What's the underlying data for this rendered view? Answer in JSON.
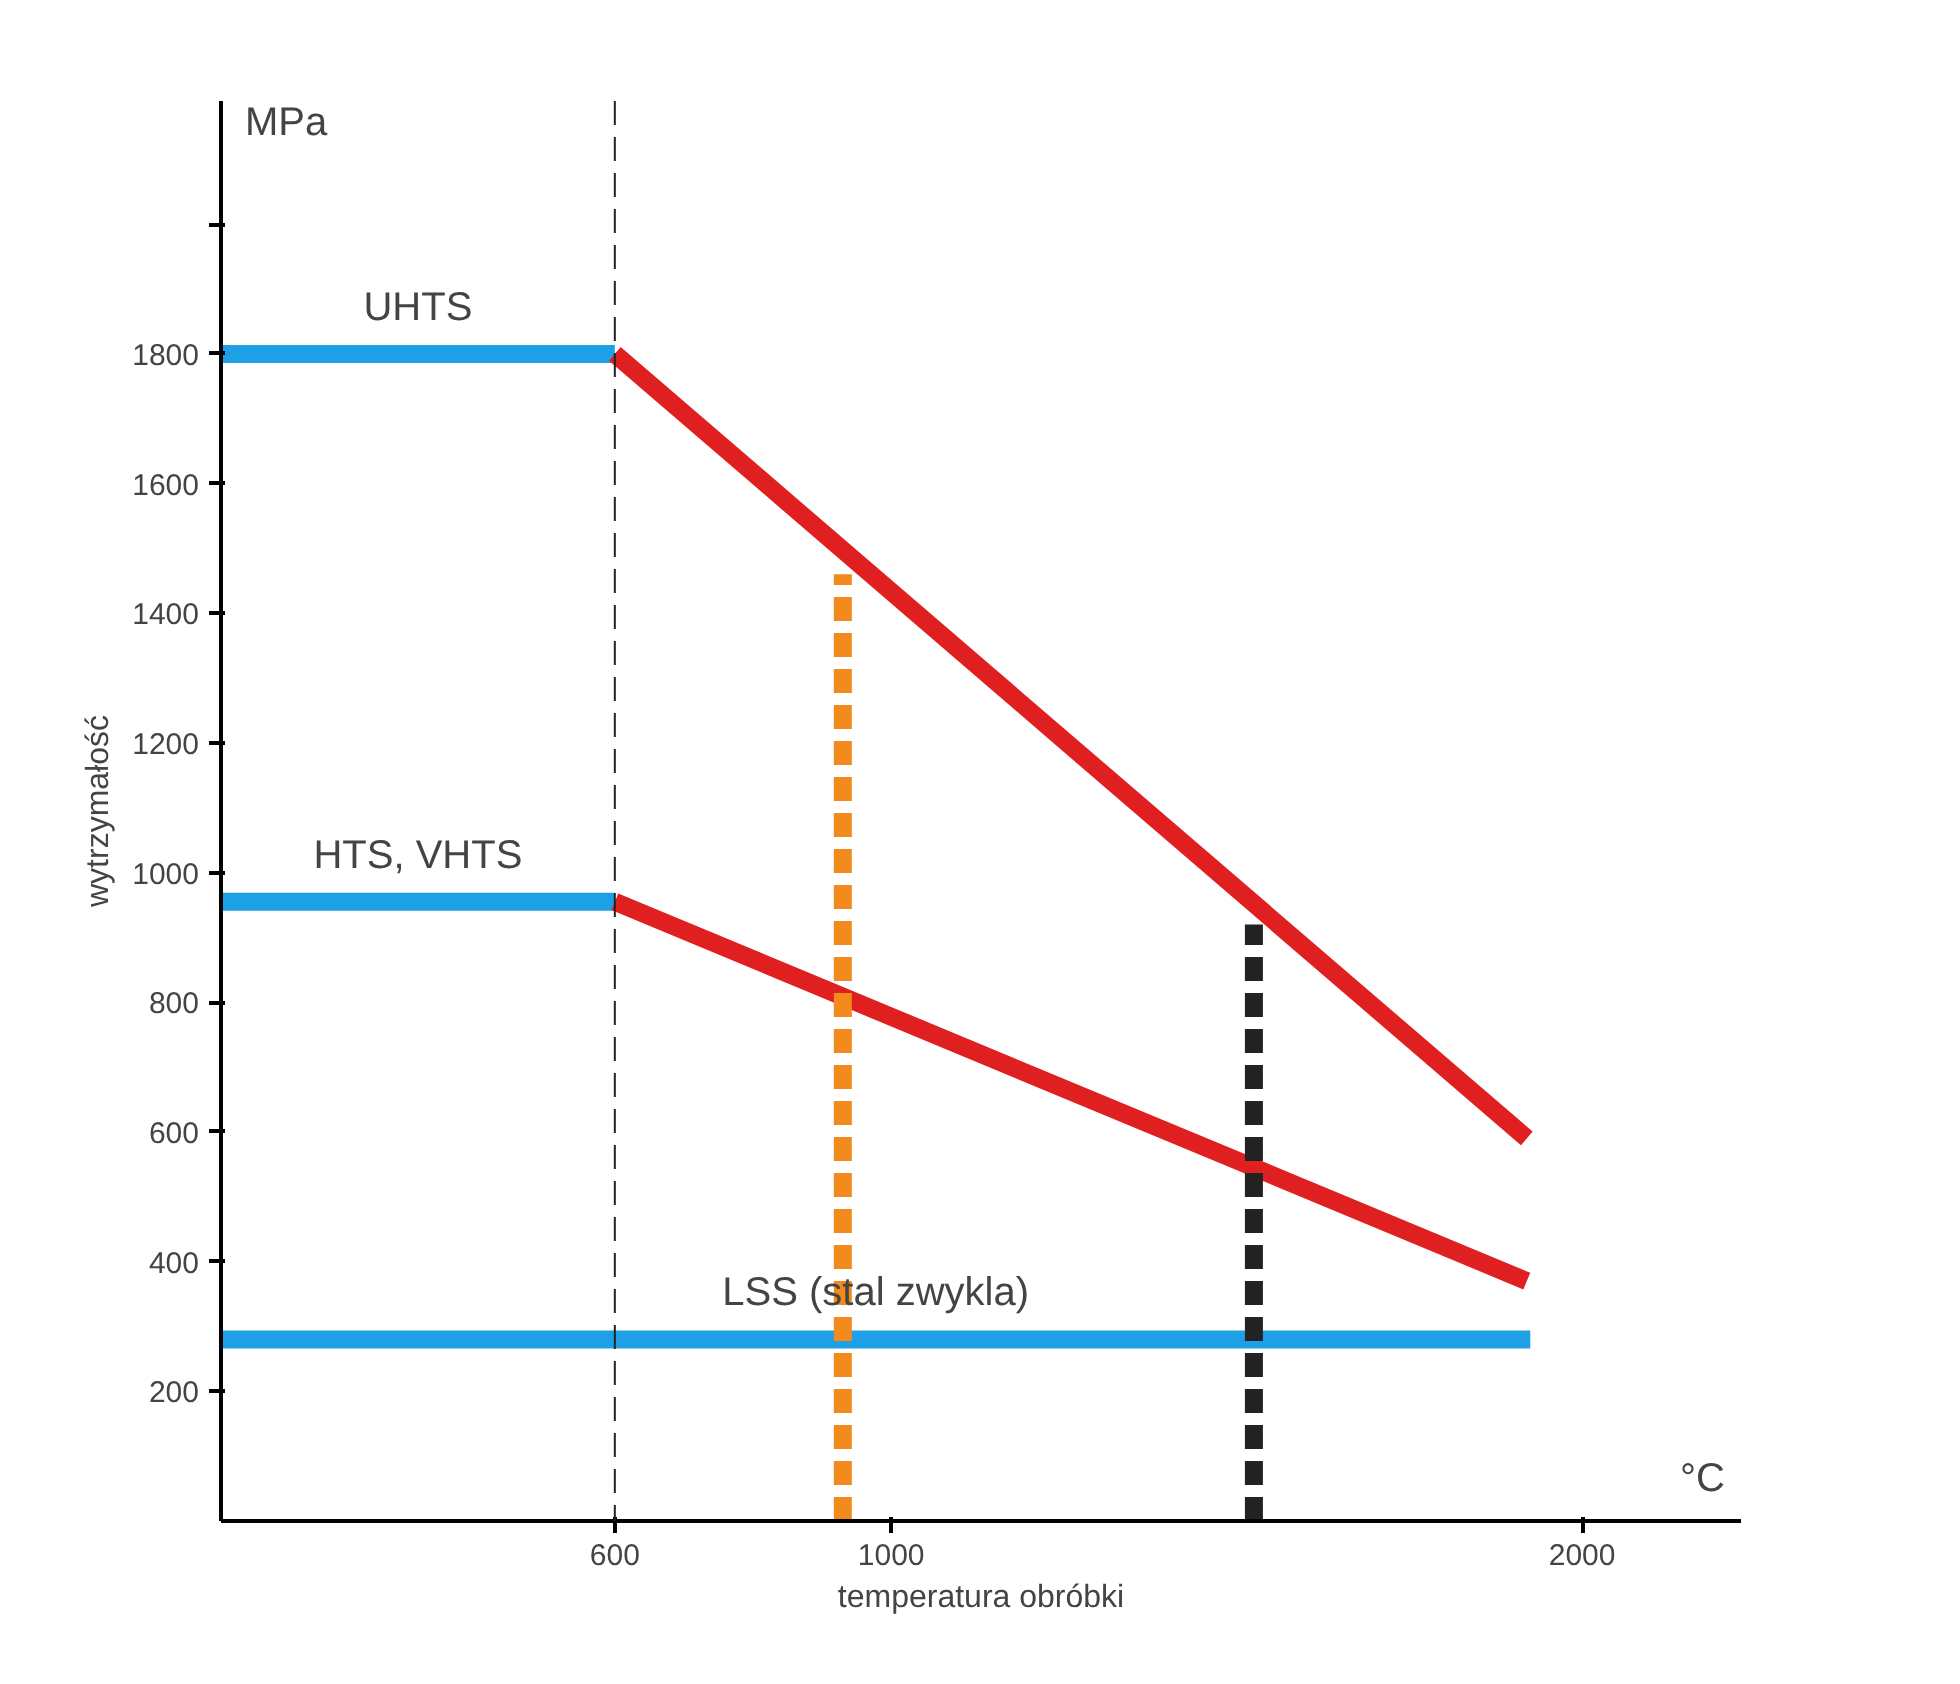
{
  "chart_data": {
    "type": "line",
    "xlabel": "temperatura obróbki",
    "ylabel": "wytrzymałość",
    "xlim": [
      30,
      2230
    ],
    "ylim": [
      0,
      2190
    ],
    "xticks": [
      600,
      1000,
      2000
    ],
    "yticks": [
      200,
      400,
      600,
      800,
      1000,
      1200,
      1400,
      1600,
      1800,
      {
        "value": 2000,
        "label": null
      }
    ],
    "grid": false,
    "marker": "none",
    "series": [
      {
        "name": "UHTS",
        "color": "#1ea0e6",
        "x": [
          30,
          600
        ],
        "values": [
          1800,
          1800
        ]
      },
      {
        "color": "#e02020",
        "x": [
          600,
          1920
        ],
        "values": [
          1800,
          590
        ]
      },
      {
        "name": "HTS, VHTS",
        "color": "#1ea0e6",
        "x": [
          30,
          600
        ],
        "values": [
          955,
          955
        ]
      },
      {
        "color": "#e02020",
        "x": [
          600,
          1920
        ],
        "values": [
          955,
          370
        ]
      },
      {
        "name": "LSS (stal zwykla)",
        "color": "#1ea0e6",
        "x": [
          30,
          1925
        ],
        "values": [
          280,
          280
        ]
      },
      {
        "color": "#f28a1c",
        "x": [
          930,
          930
        ],
        "values": [
          0,
          1460
        ],
        "line_style": "dashed"
      },
      {
        "color": "#222222",
        "x": [
          1525,
          1525
        ],
        "values": [
          0,
          920
        ],
        "line_style": "dashed"
      }
    ],
    "ref_lines": [
      {
        "axis": "x",
        "value": 600,
        "color": "#222222",
        "line_style": "dashed"
      }
    ],
    "annotations": [
      "MPa",
      "°C"
    ]
  }
}
